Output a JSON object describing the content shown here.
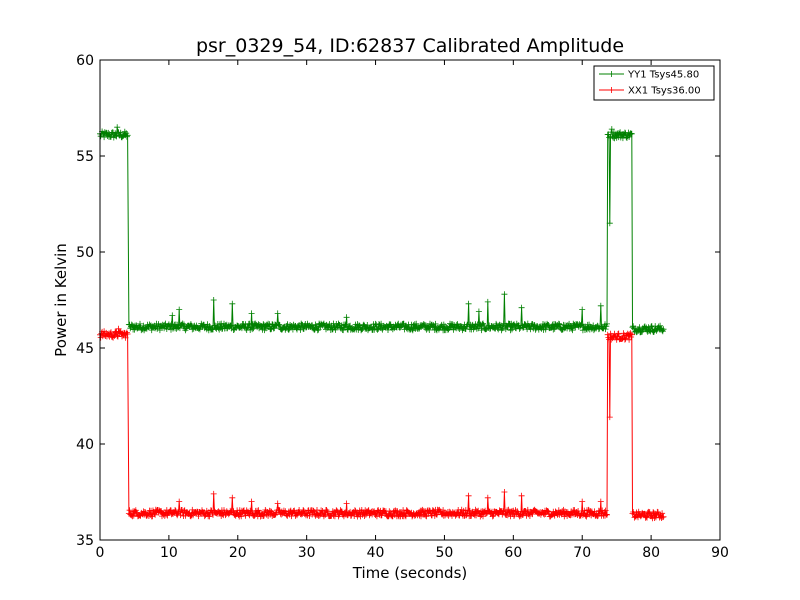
{
  "chart_data": {
    "type": "line",
    "title": "psr_0329_54, ID:62837 Calibrated Amplitude",
    "xlabel": "Time (seconds)",
    "ylabel": "Power in Kelvin",
    "xlim": [
      0,
      90
    ],
    "ylim": [
      35,
      60
    ],
    "xticks": [
      0,
      10,
      20,
      30,
      40,
      50,
      60,
      70,
      80,
      90
    ],
    "yticks": [
      35,
      40,
      45,
      50,
      55,
      60
    ],
    "grid": false,
    "legend_position": "top-right",
    "marker": "+",
    "series": [
      {
        "name": "YY1 Tsys45.80",
        "color": "#008000",
        "base_segments": [
          {
            "x": [
              0,
              4.0
            ],
            "y": 56.1
          },
          {
            "x": [
              4.2,
              73.6
            ],
            "y": 46.1
          },
          {
            "x": [
              73.7,
              77.2
            ],
            "y": 56.1
          },
          {
            "x": [
              77.3,
              81.8
            ],
            "y": 46.0
          }
        ],
        "spikes": [
          {
            "x": 2.5,
            "y": 56.5
          },
          {
            "x": 10.5,
            "y": 46.7
          },
          {
            "x": 11.5,
            "y": 47.0
          },
          {
            "x": 16.5,
            "y": 47.5
          },
          {
            "x": 19.2,
            "y": 47.3
          },
          {
            "x": 22.0,
            "y": 46.8
          },
          {
            "x": 25.8,
            "y": 46.8
          },
          {
            "x": 35.8,
            "y": 46.6
          },
          {
            "x": 53.5,
            "y": 47.3
          },
          {
            "x": 55.0,
            "y": 46.9
          },
          {
            "x": 56.3,
            "y": 47.4
          },
          {
            "x": 58.7,
            "y": 47.8
          },
          {
            "x": 61.2,
            "y": 47.1
          },
          {
            "x": 70.0,
            "y": 47.0
          },
          {
            "x": 72.7,
            "y": 47.2
          },
          {
            "x": 74.0,
            "y": 51.5
          },
          {
            "x": 74.3,
            "y": 56.4
          }
        ]
      },
      {
        "name": "XX1 Tsys36.00",
        "color": "#ff0000",
        "base_segments": [
          {
            "x": [
              0,
              4.0
            ],
            "y": 45.7
          },
          {
            "x": [
              4.2,
              73.6
            ],
            "y": 36.4
          },
          {
            "x": [
              73.7,
              77.2
            ],
            "y": 45.6
          },
          {
            "x": [
              77.3,
              81.8
            ],
            "y": 36.3
          }
        ],
        "spikes": [
          {
            "x": 2.7,
            "y": 46.0
          },
          {
            "x": 11.5,
            "y": 37.0
          },
          {
            "x": 16.5,
            "y": 37.4
          },
          {
            "x": 19.2,
            "y": 37.2
          },
          {
            "x": 22.0,
            "y": 37.0
          },
          {
            "x": 25.8,
            "y": 36.9
          },
          {
            "x": 35.8,
            "y": 36.9
          },
          {
            "x": 53.5,
            "y": 37.3
          },
          {
            "x": 56.3,
            "y": 37.2
          },
          {
            "x": 58.7,
            "y": 37.5
          },
          {
            "x": 61.2,
            "y": 37.3
          },
          {
            "x": 70.0,
            "y": 37.0
          },
          {
            "x": 72.7,
            "y": 37.0
          },
          {
            "x": 74.0,
            "y": 41.4
          }
        ]
      }
    ]
  }
}
